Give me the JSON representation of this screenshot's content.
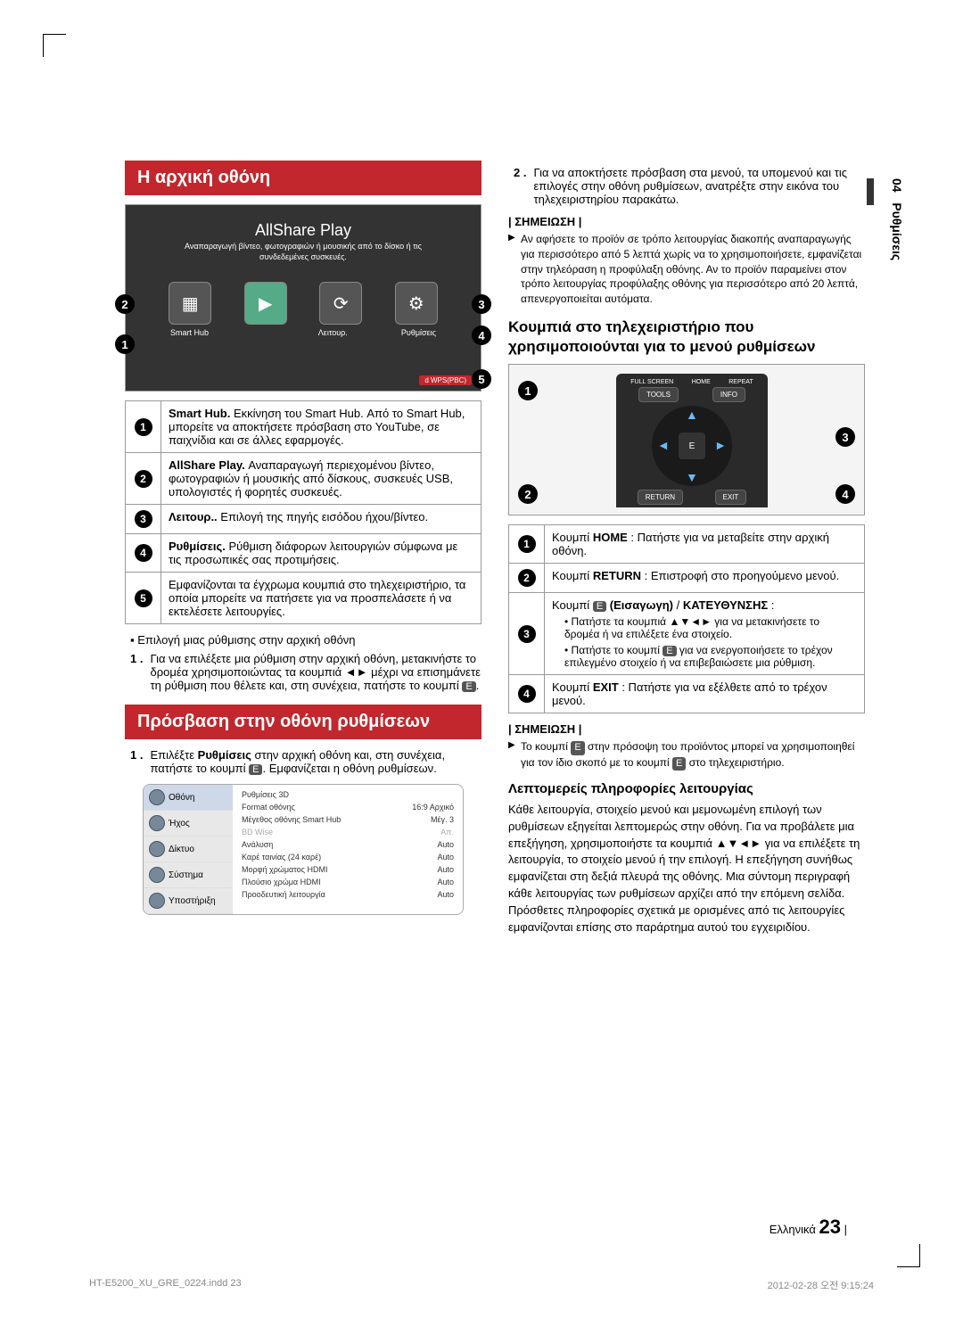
{
  "side_tab": {
    "chapter_num": "04",
    "chapter_title": "Ρυθμίσεις"
  },
  "section1_title": "Η αρχική οθόνη",
  "hero": {
    "title": "AllShare Play",
    "subtitle": "Αναπαραγωγή βίντεο, φωτογραφιών ή μουσικής από το δίσκο ή τις συνδεδεμένες συσκευές.",
    "icon_labels": [
      "Smart Hub",
      "",
      "Λειτουρ.",
      "Ρυθμίσεις"
    ]
  },
  "desc_rows": [
    {
      "n": "1",
      "bold": "Smart Hub.",
      "text": " Εκκίνηση του Smart Hub. Από το Smart Hub, μπορείτε να αποκτήσετε πρόσβαση στο YouTube, σε παιχνίδια και σε άλλες εφαρμογές."
    },
    {
      "n": "2",
      "bold": "AllShare Play.",
      "text": " Αναπαραγωγή περιεχομένου βίντεο, φωτογραφιών ή μουσικής από δίσκους, συσκευές USB, υπολογιστές ή φορητές συσκευές."
    },
    {
      "n": "3",
      "bold": "Λειτουρ..",
      "text": " Επιλογή της πηγής εισόδου ήχου/βίντεο."
    },
    {
      "n": "4",
      "bold": "Ρυθμίσεις.",
      "text": " Ρύθμιση διάφορων λειτουργιών σύμφωνα με τις προσωπικές σας προτιμήσεις."
    },
    {
      "n": "5",
      "bold": "",
      "text": "Εμφανίζονται τα έγχρωμα κουμπιά στο τηλεχειριστήριο, τα οποία μπορείτε να πατήσετε για να προσπελάσετε ή να εκτελέσετε λειτουργίες."
    }
  ],
  "bullet1": "Επιλογή μιας ρύθμισης στην αρχική οθόνη",
  "step1": {
    "n": "1 .",
    "text": "Για να επιλέξετε μια ρύθμιση στην αρχική οθόνη, μετακινήστε το δρομέα χρησιμοποιώντας τα κουμπιά ◄► μέχρι να επισημάνετε τη ρύθμιση που θέλετε και, στη συνέχεια, πατήστε το κουμπί"
  },
  "section2_title": "Πρόσβαση στην οθόνη ρυθμίσεων",
  "step_s2_1": {
    "n": "1 .",
    "text_a": "Επιλέξτε ",
    "text_bold": "Ρυθμίσεις",
    "text_b": " στην αρχική οθόνη και, στη συνέχεια, πατήστε το κουμπί ",
    "text_c": ". Εμφανίζεται η οθόνη ρυθμίσεων."
  },
  "settings_panel": {
    "sidebar": [
      "Οθόνη",
      "Ήχος",
      "Δίκτυο",
      "Σύστημα",
      "Υποστήριξη"
    ],
    "rows": [
      [
        "Ρυθμίσεις 3D",
        ""
      ],
      [
        "Format οθόνης",
        "16:9 Αρχικό"
      ],
      [
        "Μέγεθος οθόνης Smart Hub",
        "Μέγ. 3"
      ],
      [
        "BD Wise",
        "Απ."
      ],
      [
        "Ανάλυση",
        "Auto"
      ],
      [
        "Καρέ ταινίας (24 καρέ)",
        "Auto"
      ],
      [
        "Μορφή χρώματος HDMI",
        "Auto"
      ],
      [
        "Πλούσιο χρώμα HDMI",
        "Auto"
      ],
      [
        "Προοδευτική λειτουργία",
        "Auto"
      ]
    ]
  },
  "step_r_2": {
    "n": "2 .",
    "text": "Για να αποκτήσετε πρόσβαση στα μενού, τα υπομενού και τις επιλογές στην οθόνη ρυθμίσεων, ανατρέξτε στην εικόνα του τηλεχειριστηρίου παρακάτω."
  },
  "note_label": "| ΣΗΜΕΙΩΣΗ |",
  "note_r1": "Αν αφήσετε το προϊόν σε τρόπο λειτουργίας διακοπής αναπαραγωγής για περισσότερο από 5 λεπτά χωρίς να το χρησιμοποιήσετε, εμφανίζεται στην τηλεόραση η προφύλαξη οθόνης. Αν το προϊόν παραμείνει στον τρόπο λειτουργίας προφύλαξης οθόνης για περισσότερο από 20 λεπτά, απενεργοποιείται αυτόματα.",
  "subhead_remote": "Κουμπιά στο τηλεχειριστήριο που χρησιμοποιούνται για το μενού ρυθμίσεων",
  "remote_labels": {
    "full": "FULL SCREEN",
    "home": "HOME",
    "repeat": "REPEAT",
    "tools": "TOOLS",
    "info": "INFO",
    "return": "RETURN",
    "exit": "EXIT"
  },
  "remote_table": [
    {
      "n": "1",
      "html": "Κουμπί <b>HOME</b> : Πατήστε για να μεταβείτε στην αρχική οθόνη."
    },
    {
      "n": "2",
      "html": "Κουμπί <b>RETURN</b> : Επιστροφή στο προηγούμενο μενού."
    },
    {
      "n": "3",
      "line1": "Κουμπί (Εισαγωγη) / ΚΑΤΕΥΘΥΝΣΗΣ :",
      "b1": "Πατήστε τα κουμπιά ▲▼◄► για να μετακινήσετε το δρομέα ή να επιλέξετε ένα στοιχείο.",
      "b2": "Πατήστε το κουμπί  για να ενεργοποιήσετε το τρέχον επιλεγμένο στοιχείο ή να επιβεβαιώσετε μια ρύθμιση."
    },
    {
      "n": "4",
      "html": "Κουμπί <b>EXIT</b> : Πατήστε για να εξέλθετε από το τρέχον μενού."
    }
  ],
  "note_r2": "Το κουμπί  στην πρόσοψη του προϊόντος μπορεί να χρησιμοποιηθεί για τον ίδιο σκοπό με το κουμπί  στο τηλεχειριστήριο.",
  "subhead_detail": "Λεπτομερείς πληροφορίες λειτουργίας",
  "body_detail": "Κάθε λειτουργία, στοιχείο μενού και μεμονωμένη επιλογή των ρυθμίσεων εξηγείται λεπτομερώς στην οθόνη. Για να προβάλετε μια επεξήγηση, χρησιμοποιήστε τα κουμπιά ▲▼◄► για να επιλέξετε τη λειτουργία, το στοιχείο μενού ή την επιλογή. Η επεξήγηση συνήθως εμφανίζεται στη δεξιά πλευρά της οθόνης. Μια σύντομη περιγραφή κάθε λειτουργίας των ρυθμίσεων αρχίζει από την επόμενη σελίδα. Πρόσθετες πληροφορίες σχετικά με ορισμένες από τις λειτουργίες εμφανίζονται επίσης στο παράρτημα αυτού του εγχειριδίου.",
  "footer": {
    "lang": "Ελληνικά",
    "page": "23",
    "left": "HT-E5200_XU_GRE_0224.indd   23",
    "right": "2012-02-28   오전 9:15:24"
  }
}
